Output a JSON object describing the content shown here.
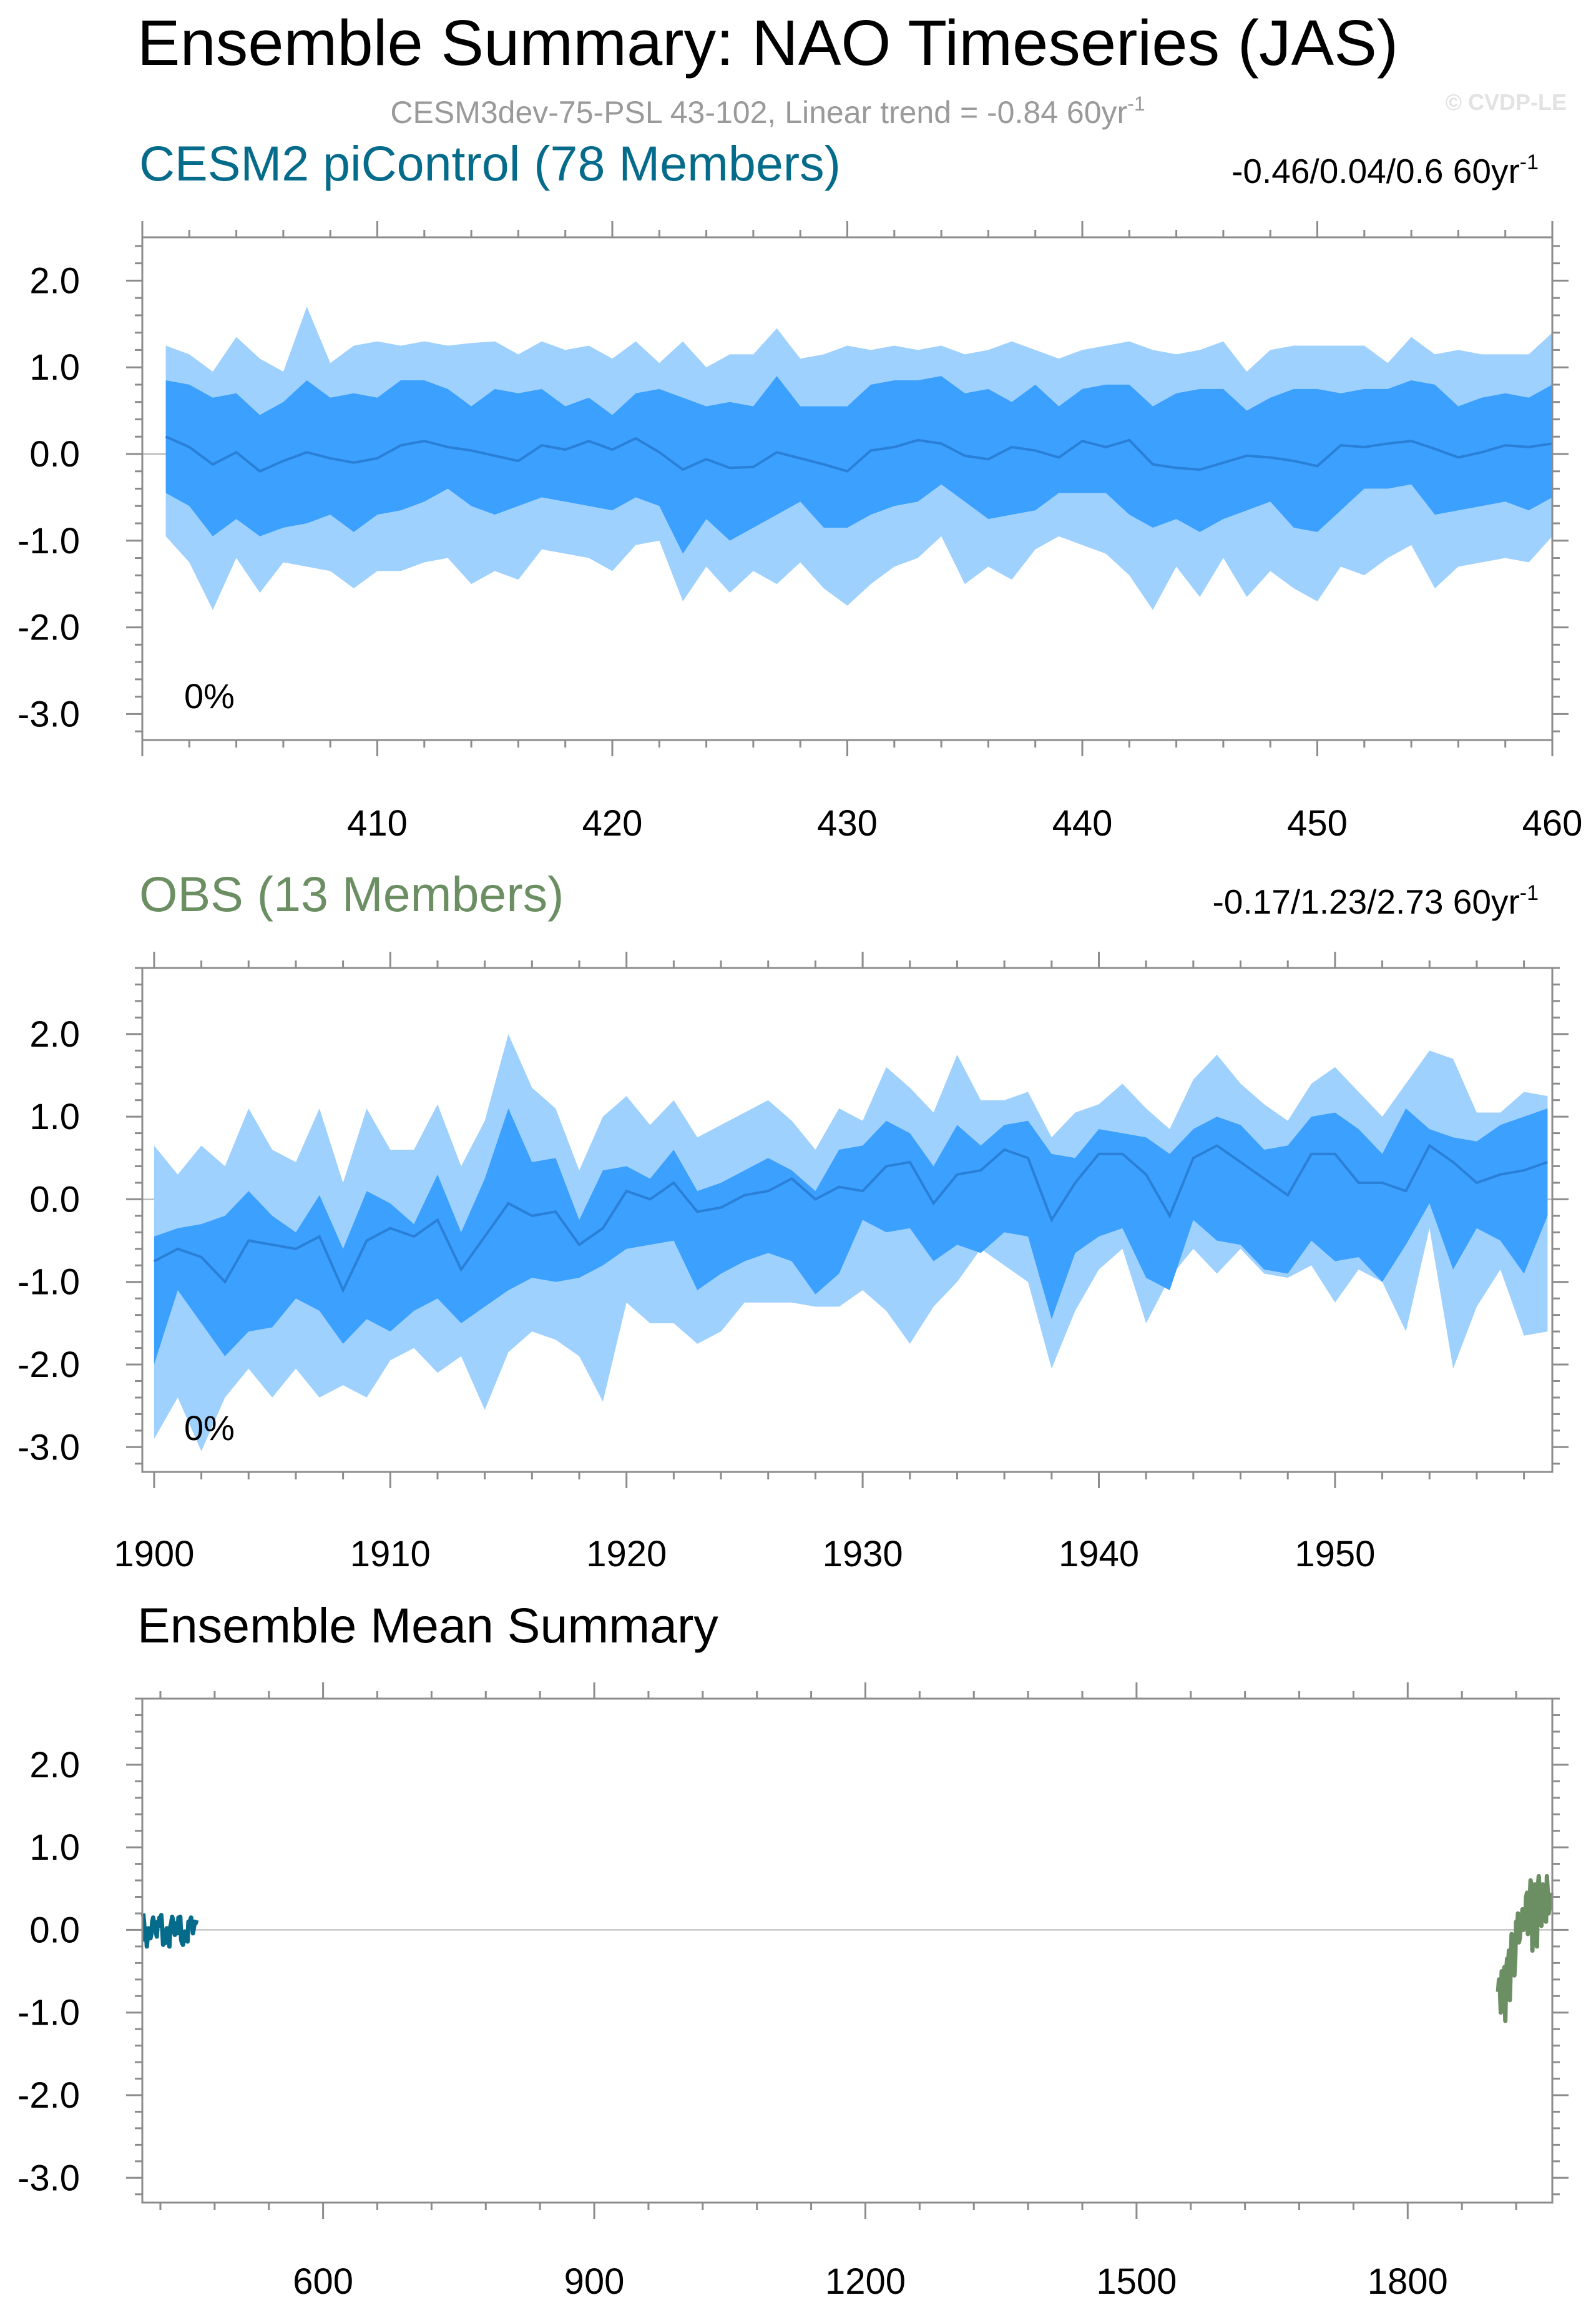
{
  "title": "Ensemble Summary: NAO Timeseries (JAS)",
  "subtitle": "CESM3dev-75-PSL 43-102, Linear trend = -0.84 60yr",
  "subtitle_sup": "-1",
  "credit": "© CVDP-LE",
  "colors": {
    "outer_band": "#9fd1ff",
    "inner_band": "#3ca0ff",
    "mean_line": "#2a7fd6",
    "model_title": "#056b8a",
    "obs_title": "#6b8e63",
    "model_line": "#056b8a",
    "obs_line": "#6b8e63"
  },
  "chart_data": [
    {
      "type": "area",
      "title": "CESM2 piControl (78 Members)",
      "trend_text": "-0.46/0.04/0.6 60yr",
      "trend_sup": "-1",
      "percent_label": "0%",
      "xlim": [
        400,
        460
      ],
      "ylim": [
        -3.3,
        2.5
      ],
      "yticks": [
        2.0,
        1.0,
        0.0,
        -1.0,
        -2.0,
        -3.0
      ],
      "ytick_labels": [
        "2.0",
        "1.0",
        "0.0",
        "-1.0",
        "-2.0",
        "-3.0"
      ],
      "xticks": [
        410,
        420,
        430,
        440,
        450,
        460
      ],
      "xtick_labels": [
        "410",
        "420",
        "430",
        "440",
        "450",
        "460"
      ],
      "x_start": 401,
      "x_step": 1,
      "p90": [
        1.25,
        1.15,
        0.95,
        1.35,
        1.1,
        0.95,
        1.7,
        1.05,
        1.25,
        1.3,
        1.25,
        1.3,
        1.25,
        1.28,
        1.3,
        1.15,
        1.3,
        1.2,
        1.25,
        1.1,
        1.3,
        1.05,
        1.3,
        1.0,
        1.15,
        1.15,
        1.45,
        1.1,
        1.15,
        1.25,
        1.2,
        1.25,
        1.2,
        1.25,
        1.15,
        1.2,
        1.3,
        1.2,
        1.1,
        1.2,
        1.25,
        1.3,
        1.2,
        1.15,
        1.2,
        1.3,
        0.95,
        1.2,
        1.25,
        1.25,
        1.25,
        1.25,
        1.05,
        1.35,
        1.15,
        1.2,
        1.15,
        1.15,
        1.15,
        1.4
      ],
      "p75": [
        0.85,
        0.8,
        0.65,
        0.7,
        0.45,
        0.6,
        0.85,
        0.65,
        0.7,
        0.65,
        0.85,
        0.85,
        0.75,
        0.55,
        0.75,
        0.7,
        0.75,
        0.55,
        0.65,
        0.45,
        0.7,
        0.75,
        0.65,
        0.55,
        0.6,
        0.55,
        0.9,
        0.55,
        0.55,
        0.55,
        0.8,
        0.85,
        0.85,
        0.9,
        0.7,
        0.75,
        0.6,
        0.8,
        0.55,
        0.75,
        0.8,
        0.8,
        0.55,
        0.7,
        0.75,
        0.75,
        0.5,
        0.65,
        0.75,
        0.75,
        0.7,
        0.75,
        0.75,
        0.85,
        0.8,
        0.55,
        0.65,
        0.7,
        0.65,
        0.8
      ],
      "mean": [
        0.2,
        0.08,
        -0.12,
        0.02,
        -0.2,
        -0.08,
        0.02,
        -0.05,
        -0.1,
        -0.05,
        0.1,
        0.15,
        0.08,
        0.04,
        -0.02,
        -0.08,
        0.1,
        0.05,
        0.15,
        0.05,
        0.18,
        0.02,
        -0.18,
        -0.06,
        -0.16,
        -0.15,
        0.02,
        -0.05,
        -0.12,
        -0.2,
        0.04,
        0.08,
        0.16,
        0.12,
        -0.02,
        -0.06,
        0.08,
        0.04,
        -0.04,
        0.15,
        0.08,
        0.16,
        -0.12,
        -0.16,
        -0.18,
        -0.1,
        -0.02,
        -0.04,
        -0.08,
        -0.14,
        0.1,
        0.08,
        0.12,
        0.15,
        0.06,
        -0.04,
        0.02,
        0.1,
        0.08,
        0.12
      ],
      "p25": [
        -0.45,
        -0.6,
        -0.95,
        -0.75,
        -0.95,
        -0.85,
        -0.8,
        -0.7,
        -0.9,
        -0.7,
        -0.65,
        -0.55,
        -0.4,
        -0.6,
        -0.7,
        -0.6,
        -0.5,
        -0.55,
        -0.6,
        -0.65,
        -0.5,
        -0.6,
        -1.15,
        -0.75,
        -1.0,
        -0.85,
        -0.7,
        -0.55,
        -0.85,
        -0.85,
        -0.7,
        -0.6,
        -0.55,
        -0.35,
        -0.55,
        -0.75,
        -0.7,
        -0.65,
        -0.45,
        -0.45,
        -0.45,
        -0.7,
        -0.85,
        -0.75,
        -0.9,
        -0.75,
        -0.65,
        -0.55,
        -0.85,
        -0.9,
        -0.65,
        -0.4,
        -0.4,
        -0.35,
        -0.7,
        -0.65,
        -0.6,
        -0.55,
        -0.65,
        -0.5
      ],
      "p10": [
        -0.95,
        -1.25,
        -1.8,
        -1.2,
        -1.6,
        -1.25,
        -1.3,
        -1.35,
        -1.55,
        -1.35,
        -1.35,
        -1.25,
        -1.2,
        -1.5,
        -1.35,
        -1.45,
        -1.1,
        -1.15,
        -1.2,
        -1.35,
        -1.05,
        -1.0,
        -1.7,
        -1.3,
        -1.6,
        -1.35,
        -1.5,
        -1.25,
        -1.55,
        -1.75,
        -1.5,
        -1.3,
        -1.2,
        -0.95,
        -1.5,
        -1.3,
        -1.45,
        -1.1,
        -0.95,
        -1.05,
        -1.15,
        -1.4,
        -1.8,
        -1.3,
        -1.65,
        -1.2,
        -1.65,
        -1.35,
        -1.55,
        -1.7,
        -1.3,
        -1.4,
        -1.2,
        -1.05,
        -1.55,
        -1.3,
        -1.25,
        -1.2,
        -1.25,
        -0.95
      ]
    },
    {
      "type": "area",
      "title": "OBS (13 Members)",
      "trend_text": "-0.17/1.23/2.73 60yr",
      "trend_sup": "-1",
      "percent_label": "0%",
      "xlim": [
        1899.5,
        1959.2
      ],
      "ylim": [
        -3.3,
        2.8
      ],
      "yticks": [
        2.0,
        1.0,
        0.0,
        -1.0,
        -2.0,
        -3.0
      ],
      "ytick_labels": [
        "2.0",
        "1.0",
        "0.0",
        "-1.0",
        "-2.0",
        "-3.0"
      ],
      "xticks": [
        1900,
        1910,
        1920,
        1930,
        1940,
        1950
      ],
      "xtick_labels": [
        "1900",
        "1910",
        "1920",
        "1930",
        "1940",
        "1950"
      ],
      "x_start": 1900,
      "x_step": 1,
      "p90": [
        0.65,
        0.3,
        0.65,
        0.4,
        1.1,
        0.6,
        0.45,
        1.1,
        0.2,
        1.1,
        0.6,
        0.6,
        1.15,
        0.4,
        0.95,
        2.0,
        1.35,
        1.1,
        0.35,
        1.0,
        1.25,
        0.9,
        1.2,
        0.75,
        0.9,
        1.05,
        1.2,
        0.95,
        0.6,
        1.1,
        0.95,
        1.6,
        1.35,
        1.05,
        1.75,
        1.2,
        1.2,
        1.3,
        0.75,
        1.05,
        1.15,
        1.4,
        1.1,
        0.85,
        1.45,
        1.75,
        1.4,
        1.15,
        0.95,
        1.4,
        1.6,
        1.3,
        1.0,
        1.4,
        1.8,
        1.7,
        1.05,
        1.05,
        1.3,
        1.25
      ],
      "p75": [
        -0.45,
        -0.35,
        -0.3,
        -0.2,
        0.1,
        -0.2,
        -0.4,
        0.05,
        -0.6,
        0.1,
        -0.05,
        -0.3,
        0.3,
        -0.4,
        0.25,
        1.1,
        0.45,
        0.5,
        -0.25,
        0.35,
        0.4,
        0.25,
        0.6,
        0.1,
        0.2,
        0.35,
        0.5,
        0.35,
        0.1,
        0.6,
        0.65,
        0.95,
        0.8,
        0.4,
        0.9,
        0.65,
        0.9,
        0.95,
        0.55,
        0.5,
        0.85,
        0.8,
        0.75,
        0.55,
        0.85,
        1.0,
        0.9,
        0.6,
        0.65,
        1.0,
        1.05,
        0.85,
        0.55,
        1.1,
        0.85,
        0.75,
        0.7,
        0.9,
        1.0,
        1.1
      ],
      "mean": [
        -0.75,
        -0.6,
        -0.7,
        -1.0,
        -0.5,
        -0.55,
        -0.6,
        -0.45,
        -1.1,
        -0.5,
        -0.35,
        -0.45,
        -0.25,
        -0.85,
        -0.45,
        -0.05,
        -0.2,
        -0.15,
        -0.55,
        -0.35,
        0.1,
        0.0,
        0.2,
        -0.15,
        -0.1,
        0.05,
        0.1,
        0.25,
        0.0,
        0.15,
        0.1,
        0.4,
        0.45,
        -0.05,
        0.3,
        0.35,
        0.6,
        0.5,
        -0.25,
        0.2,
        0.55,
        0.55,
        0.3,
        -0.2,
        0.5,
        0.65,
        0.45,
        0.25,
        0.05,
        0.55,
        0.55,
        0.2,
        0.2,
        0.1,
        0.65,
        0.45,
        0.2,
        0.3,
        0.35,
        0.45
      ],
      "p25": [
        -2.0,
        -1.1,
        -1.5,
        -1.9,
        -1.6,
        -1.55,
        -1.2,
        -1.35,
        -1.75,
        -1.45,
        -1.6,
        -1.35,
        -1.2,
        -1.5,
        -1.3,
        -1.1,
        -0.95,
        -1.0,
        -0.95,
        -0.8,
        -0.6,
        -0.55,
        -0.5,
        -1.1,
        -0.9,
        -0.75,
        -0.65,
        -0.75,
        -1.15,
        -0.9,
        -0.25,
        -0.4,
        -0.35,
        -0.75,
        -0.55,
        -0.65,
        -0.4,
        -0.45,
        -1.45,
        -0.65,
        -0.45,
        -0.35,
        -0.95,
        -1.1,
        -0.25,
        -0.5,
        -0.55,
        -0.85,
        -0.9,
        -0.5,
        -0.75,
        -0.7,
        -1.0,
        -0.55,
        -0.05,
        -0.85,
        -0.35,
        -0.5,
        -0.9,
        -0.2
      ],
      "p10": [
        -2.9,
        -2.4,
        -3.05,
        -2.4,
        -2.05,
        -2.4,
        -2.05,
        -2.4,
        -2.25,
        -2.4,
        -1.95,
        -1.8,
        -2.1,
        -1.9,
        -2.55,
        -1.85,
        -1.6,
        -1.7,
        -1.9,
        -2.45,
        -1.25,
        -1.5,
        -1.5,
        -1.75,
        -1.6,
        -1.25,
        -1.25,
        -1.25,
        -1.3,
        -1.3,
        -1.1,
        -1.35,
        -1.75,
        -1.3,
        -1.0,
        -0.6,
        -0.8,
        -1.0,
        -2.05,
        -1.35,
        -0.85,
        -0.6,
        -1.5,
        -0.95,
        -0.6,
        -0.9,
        -0.6,
        -0.9,
        -0.95,
        -0.8,
        -1.25,
        -0.85,
        -1.0,
        -1.6,
        -0.35,
        -2.05,
        -1.3,
        -0.85,
        -1.65,
        -1.6
      ]
    },
    {
      "type": "line",
      "title": "Ensemble Mean Summary",
      "xlim": [
        400,
        1960
      ],
      "ylim": [
        -3.3,
        2.8
      ],
      "yticks": [
        2.0,
        1.0,
        0.0,
        -1.0,
        -2.0,
        -3.0
      ],
      "ytick_labels": [
        "2.0",
        "1.0",
        "0.0",
        "-1.0",
        "-2.0",
        "-3.0"
      ],
      "xticks": [
        600,
        900,
        1200,
        1500,
        1800
      ],
      "xtick_labels": [
        "600",
        "900",
        "1200",
        "1500",
        "1800"
      ],
      "series": [
        {
          "name": "CESM2 piControl",
          "x_start": 401,
          "x_step": 1,
          "color": "#056b8a",
          "values_ref": "chart_data.0.mean"
        },
        {
          "name": "OBS",
          "x_start": 1900,
          "x_step": 1,
          "color": "#6b8e63",
          "values_ref": "chart_data.1.mean"
        }
      ]
    }
  ]
}
